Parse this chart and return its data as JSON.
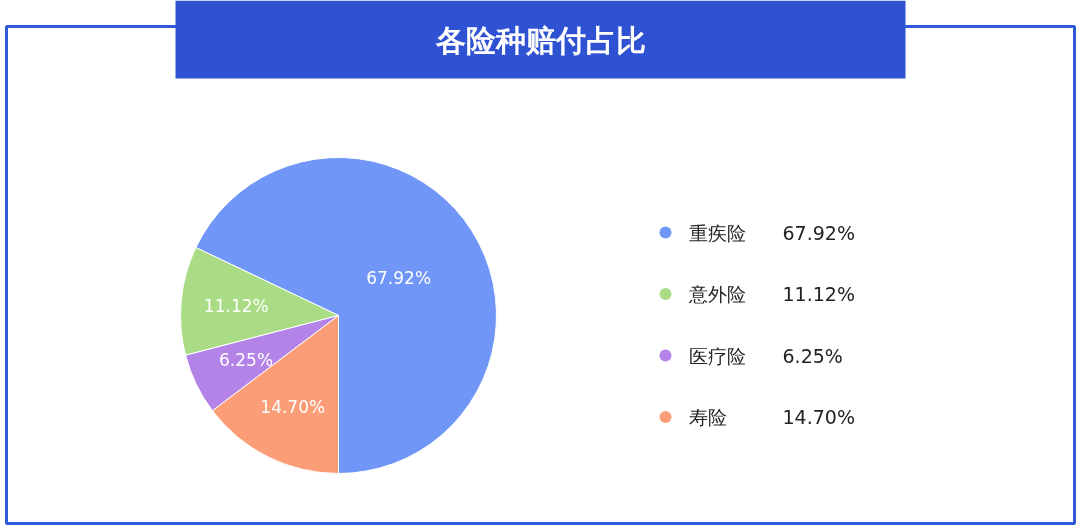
{
  "chart_data": {
    "type": "pie",
    "title": "各险种赔付占比",
    "categories": [
      "重疾险",
      "意外险",
      "医疗险",
      "寿险"
    ],
    "values": [
      67.92,
      11.12,
      6.25,
      14.7
    ],
    "value_labels": [
      "67.92%",
      "11.12%",
      "6.25%",
      "14.70%"
    ],
    "colors": [
      "#7096f8",
      "#a9dc85",
      "#b383e8",
      "#fb9e78"
    ],
    "legend": "right"
  }
}
